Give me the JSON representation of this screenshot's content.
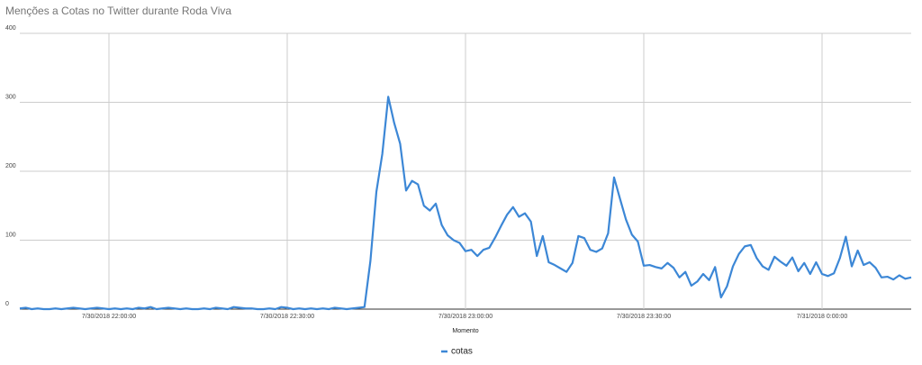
{
  "chart_data": {
    "type": "line",
    "title": "Menções a Cotas no Twitter durante Roda Viva",
    "x_label": "Momento",
    "x": [
      "7/30/2018 21:45:00",
      "7/30/2018 21:46:00",
      "7/30/2018 21:47:00",
      "7/30/2018 21:48:00",
      "7/30/2018 21:49:00",
      "7/30/2018 21:50:00",
      "7/30/2018 21:51:00",
      "7/30/2018 21:52:00",
      "7/30/2018 21:53:00",
      "7/30/2018 21:54:00",
      "7/30/2018 21:55:00",
      "7/30/2018 21:56:00",
      "7/30/2018 21:57:00",
      "7/30/2018 21:58:00",
      "7/30/2018 21:59:00",
      "7/30/2018 22:00:00",
      "7/30/2018 22:01:00",
      "7/30/2018 22:02:00",
      "7/30/2018 22:03:00",
      "7/30/2018 22:04:00",
      "7/30/2018 22:05:00",
      "7/30/2018 22:06:00",
      "7/30/2018 22:07:00",
      "7/30/2018 22:08:00",
      "7/30/2018 22:09:00",
      "7/30/2018 22:10:00",
      "7/30/2018 22:11:00",
      "7/30/2018 22:12:00",
      "7/30/2018 22:13:00",
      "7/30/2018 22:14:00",
      "7/30/2018 22:15:00",
      "7/30/2018 22:16:00",
      "7/30/2018 22:17:00",
      "7/30/2018 22:18:00",
      "7/30/2018 22:19:00",
      "7/30/2018 22:20:00",
      "7/30/2018 22:21:00",
      "7/30/2018 22:22:00",
      "7/30/2018 22:23:00",
      "7/30/2018 22:24:00",
      "7/30/2018 22:25:00",
      "7/30/2018 22:26:00",
      "7/30/2018 22:27:00",
      "7/30/2018 22:28:00",
      "7/30/2018 22:29:00",
      "7/30/2018 22:30:00",
      "7/30/2018 22:31:00",
      "7/30/2018 22:32:00",
      "7/30/2018 22:33:00",
      "7/30/2018 22:34:00",
      "7/30/2018 22:35:00",
      "7/30/2018 22:36:00",
      "7/30/2018 22:37:00",
      "7/30/2018 22:38:00",
      "7/30/2018 22:39:00",
      "7/30/2018 22:40:00",
      "7/30/2018 22:41:00",
      "7/30/2018 22:42:00",
      "7/30/2018 22:43:00",
      "7/30/2018 22:44:00",
      "7/30/2018 22:45:00",
      "7/30/2018 22:46:00",
      "7/30/2018 22:47:00",
      "7/30/2018 22:48:00",
      "7/30/2018 22:49:00",
      "7/30/2018 22:50:00",
      "7/30/2018 22:51:00",
      "7/30/2018 22:52:00",
      "7/30/2018 22:53:00",
      "7/30/2018 22:54:00",
      "7/30/2018 22:55:00",
      "7/30/2018 22:56:00",
      "7/30/2018 22:57:00",
      "7/30/2018 22:58:00",
      "7/30/2018 22:59:00",
      "7/30/2018 23:00:00",
      "7/30/2018 23:01:00",
      "7/30/2018 23:02:00",
      "7/30/2018 23:03:00",
      "7/30/2018 23:04:00",
      "7/30/2018 23:05:00",
      "7/30/2018 23:06:00",
      "7/30/2018 23:07:00",
      "7/30/2018 23:08:00",
      "7/30/2018 23:09:00",
      "7/30/2018 23:10:00",
      "7/30/2018 23:11:00",
      "7/30/2018 23:12:00",
      "7/30/2018 23:13:00",
      "7/30/2018 23:14:00",
      "7/30/2018 23:15:00",
      "7/30/2018 23:16:00",
      "7/30/2018 23:17:00",
      "7/30/2018 23:18:00",
      "7/30/2018 23:19:00",
      "7/30/2018 23:20:00",
      "7/30/2018 23:21:00",
      "7/30/2018 23:22:00",
      "7/30/2018 23:23:00",
      "7/30/2018 23:24:00",
      "7/30/2018 23:25:00",
      "7/30/2018 23:26:00",
      "7/30/2018 23:27:00",
      "7/30/2018 23:28:00",
      "7/30/2018 23:29:00",
      "7/30/2018 23:30:00",
      "7/30/2018 23:31:00",
      "7/30/2018 23:32:00",
      "7/30/2018 23:33:00",
      "7/30/2018 23:34:00",
      "7/30/2018 23:35:00",
      "7/30/2018 23:36:00",
      "7/30/2018 23:37:00",
      "7/30/2018 23:38:00",
      "7/30/2018 23:39:00",
      "7/30/2018 23:40:00",
      "7/30/2018 23:41:00",
      "7/30/2018 23:42:00",
      "7/30/2018 23:43:00",
      "7/30/2018 23:44:00",
      "7/30/2018 23:45:00",
      "7/30/2018 23:46:00",
      "7/30/2018 23:47:00",
      "7/30/2018 23:48:00",
      "7/30/2018 23:49:00",
      "7/30/2018 23:50:00",
      "7/30/2018 23:51:00",
      "7/30/2018 23:52:00",
      "7/30/2018 23:53:00",
      "7/30/2018 23:54:00",
      "7/30/2018 23:55:00",
      "7/30/2018 23:56:00",
      "7/30/2018 23:57:00",
      "7/30/2018 23:58:00",
      "7/30/2018 23:59:00",
      "7/31/2018 0:00:00",
      "7/31/2018 0:01:00",
      "7/31/2018 0:02:00",
      "7/31/2018 0:03:00",
      "7/31/2018 0:04:00",
      "7/31/2018 0:05:00",
      "7/31/2018 0:06:00",
      "7/31/2018 0:07:00",
      "7/31/2018 0:08:00",
      "7/31/2018 0:09:00",
      "7/31/2018 0:10:00",
      "7/31/2018 0:11:00",
      "7/31/2018 0:12:00",
      "7/31/2018 0:13:00",
      "7/31/2018 0:14:00",
      "7/31/2018 0:15:00"
    ],
    "series": [
      {
        "name": "cotas",
        "color": "#3c87d6",
        "values": [
          1,
          2,
          0,
          1,
          0,
          0,
          1,
          0,
          1,
          2,
          1,
          0,
          1,
          2,
          1,
          0,
          1,
          0,
          1,
          0,
          2,
          1,
          3,
          0,
          1,
          2,
          1,
          0,
          1,
          0,
          0,
          1,
          0,
          2,
          1,
          0,
          3,
          2,
          1,
          1,
          0,
          0,
          1,
          0,
          3,
          2,
          0,
          1,
          0,
          1,
          0,
          1,
          0,
          2,
          1,
          0,
          1,
          2,
          3,
          70,
          170,
          225,
          308,
          270,
          240,
          172,
          186,
          181,
          150,
          143,
          153,
          122,
          107,
          100,
          96,
          84,
          86,
          77,
          86,
          89,
          104,
          121,
          137,
          148,
          134,
          139,
          127,
          77,
          106,
          68,
          64,
          59,
          54,
          67,
          106,
          103,
          86,
          83,
          88,
          110,
          191,
          160,
          130,
          108,
          98,
          63,
          64,
          61,
          59,
          67,
          60,
          46,
          54,
          34,
          40,
          51,
          42,
          61,
          17,
          33,
          62,
          80,
          91,
          93,
          74,
          62,
          57,
          76,
          69,
          63,
          75,
          55,
          67,
          51,
          68,
          51,
          48,
          52,
          74,
          105,
          62,
          85,
          64,
          68,
          60,
          46,
          47,
          43,
          49,
          44,
          46
        ]
      }
    ],
    "xlim": [
      "7/30/2018 21:45:00",
      "7/31/2018 0:15:00"
    ],
    "xticks": [
      "7/30/2018 22:00:00",
      "7/30/2018 22:30:00",
      "7/30/2018 23:00:00",
      "7/30/2018 23:30:00",
      "7/31/2018 0:00:00"
    ],
    "ylim": [
      0,
      400
    ],
    "yticks": [
      0,
      100,
      200,
      300,
      400
    ],
    "grid": true
  }
}
